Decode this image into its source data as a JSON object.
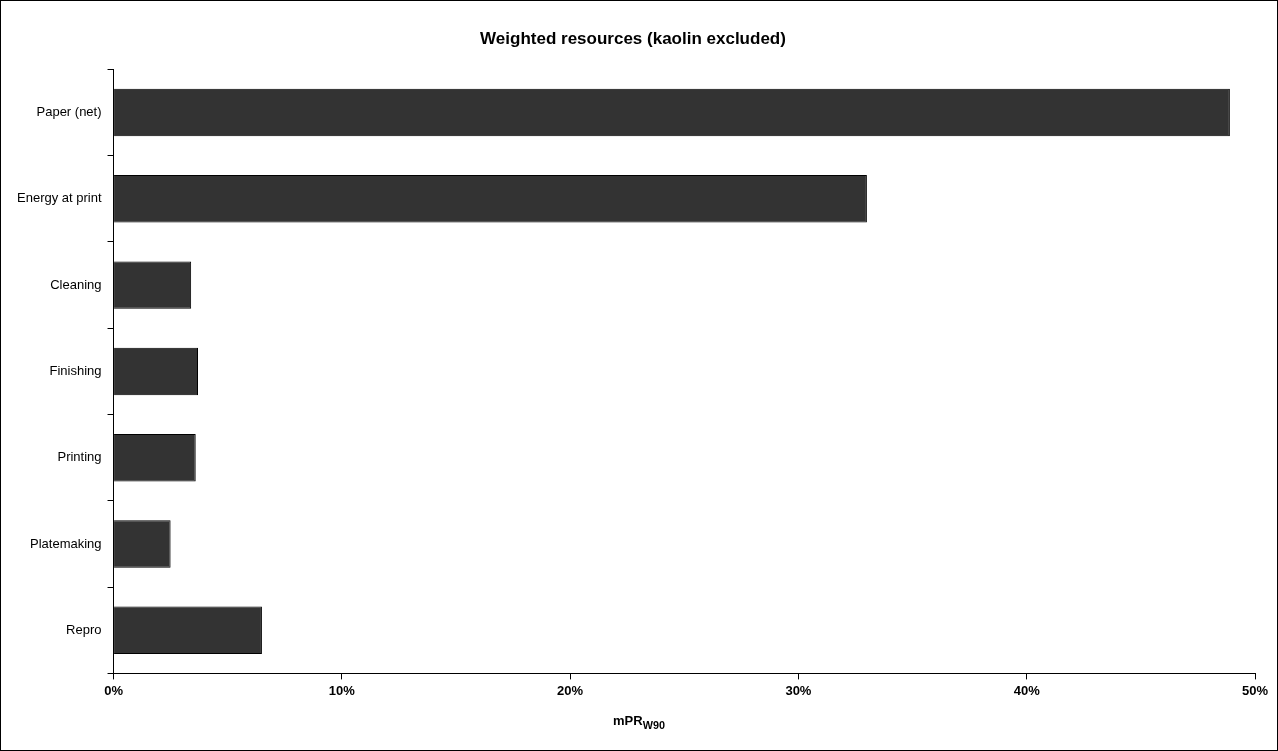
{
  "chart_data": {
    "type": "bar",
    "orientation": "horizontal",
    "title": "Weighted resources (kaolin excluded)",
    "xlabel": "mPR$_{W90}$",
    "categories": [
      "Paper (net)",
      "Energy at print",
      "Cleaning",
      "Finishing",
      "Printing",
      "Platemaking",
      "Repro"
    ],
    "values": [
      48.9,
      33.0,
      3.4,
      3.7,
      3.6,
      2.5,
      6.5
    ],
    "color": "#333333",
    "xlim": [
      0,
      50
    ],
    "xticks": [
      {
        "value": 0,
        "label": "0%"
      },
      {
        "value": 10,
        "label": "10%"
      },
      {
        "value": 20,
        "label": "20%"
      },
      {
        "value": 30,
        "label": "30%"
      },
      {
        "value": 40,
        "label": "40%"
      },
      {
        "value": 50,
        "label": "50%"
      }
    ],
    "grid": false,
    "legend": false
  }
}
